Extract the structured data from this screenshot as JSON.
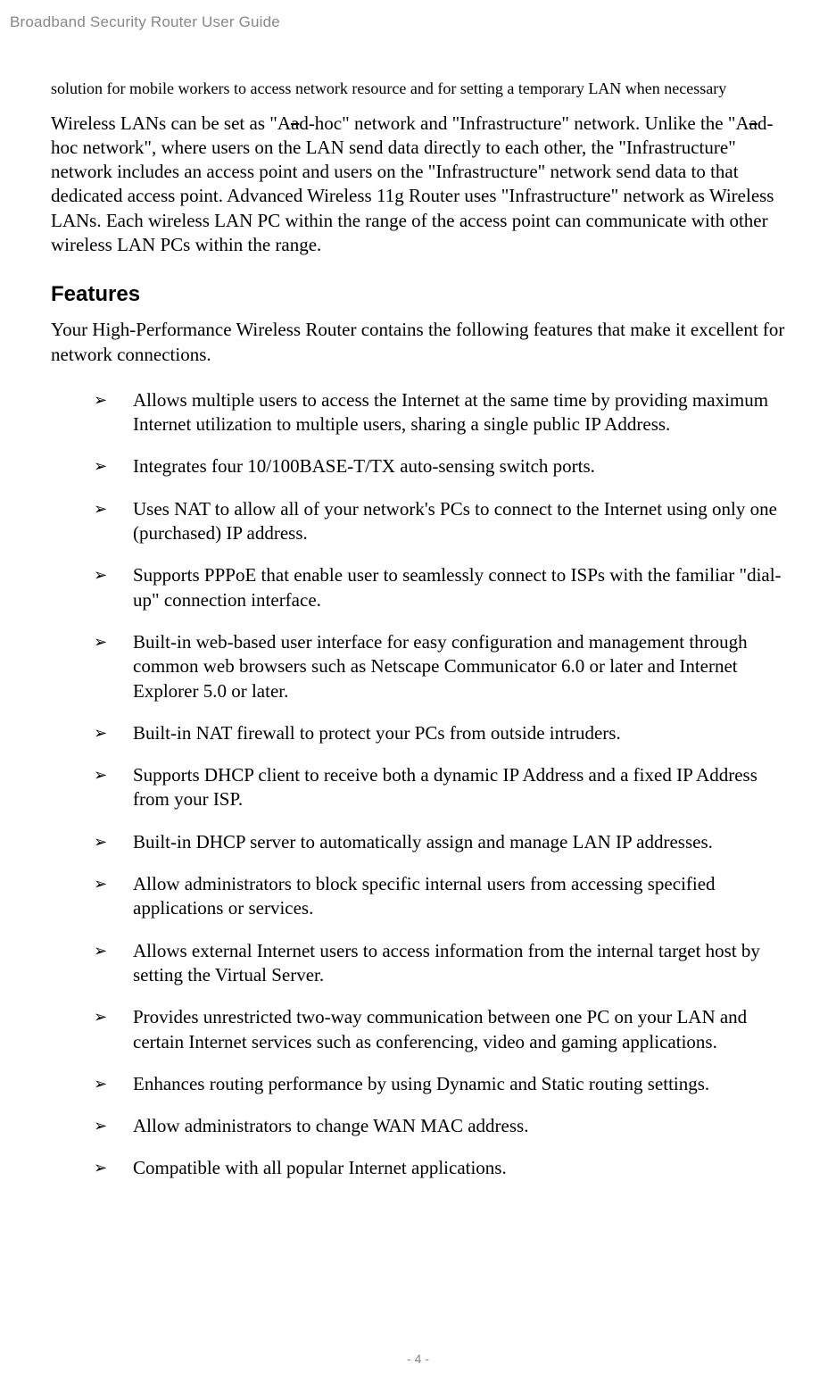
{
  "header": {
    "title": "Broadband Security Router User Guide"
  },
  "intro": {
    "paragraph": "solution for mobile workers to access network resource and for setting a temporary LAN when necessary"
  },
  "main": {
    "p1_seg1": "Wireless LANs can be set as \"A",
    "p1_strike1": "a",
    "p1_seg2": "d-hoc\" network and \"Infrastructure\" network. Unlike the \"A",
    "p1_strike2": "a",
    "p1_seg3": "d-hoc network\", where users on the LAN send data directly to each other, the \"Infrastructure\" network includes an access point and users on the \"Infrastructure\" network send data to that dedicated access point. Advanced Wireless 11g Router uses \"Infrastructure\" network as Wireless LANs. Each wireless LAN PC within the range of the access point can communicate with other wireless LAN PCs within the range."
  },
  "features": {
    "heading": "Features",
    "intro": "Your High-Performance Wireless Router contains the following features that make it excellent for network connections.",
    "bullet_glyph": "➢",
    "items": [
      "Allows multiple users to access the Internet at the same time by providing maximum Internet utilization to multiple users, sharing a single public IP Address.",
      "Integrates four 10/100BASE-T/TX auto-sensing switch ports.",
      "Uses NAT to allow all of your network's PCs to connect to the Internet using only one (purchased) IP address.",
      "Supports PPPoE that enable user to seamlessly connect to ISPs with the familiar \"dial-up\" connection interface.",
      "Built-in web-based user interface for easy configuration and management through common web browsers such as Netscape Communicator 6.0 or later and Internet Explorer 5.0 or later.",
      "Built-in NAT firewall to protect your PCs from outside intruders.",
      "Supports DHCP client to receive both a dynamic IP Address and a fixed IP Address from your ISP.",
      "Built-in DHCP server to automatically assign and manage LAN IP addresses.",
      "Allow administrators to block specific internal users from accessing specified applications or services.",
      "Allows external Internet users to access information from the internal target host by setting the Virtual Server.",
      "Provides unrestricted two-way communication between one PC on your LAN and certain Internet services such as conferencing, video and gaming applications.",
      "Enhances routing performance by using Dynamic and Static routing settings.",
      "Allow administrators to change WAN MAC address.",
      "Compatible with all popular Internet applications."
    ]
  },
  "footer": {
    "page_number": "- 4 -"
  },
  "styles": {
    "header_color": "#888888",
    "body_text_color": "#000000",
    "background_color": "#ffffff",
    "body_font": "Times New Roman",
    "heading_font": "Arial",
    "intro_fontsize": 18,
    "body_fontsize": 21,
    "heading_fontsize": 24,
    "footer_fontsize": 14
  }
}
